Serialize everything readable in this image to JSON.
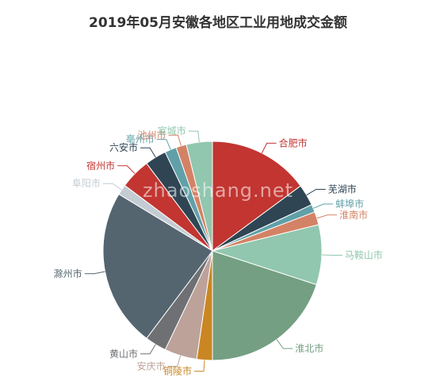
{
  "chart_data": {
    "type": "pie",
    "title": "2019年05月安徽各地区工业用地成交金额",
    "watermark": "zhaoshang.net",
    "slices": [
      {
        "name": "合肥市",
        "value": 15.5,
        "color": "#c23531"
      },
      {
        "name": "芜湖市",
        "value": 3.3,
        "color": "#2f4554"
      },
      {
        "name": "蚌埠市",
        "value": 1.2,
        "color": "#61a0a8"
      },
      {
        "name": "淮南市",
        "value": 2.0,
        "color": "#d48265"
      },
      {
        "name": "马鞍山市",
        "value": 9.2,
        "color": "#91c7ae"
      },
      {
        "name": "淮北市",
        "value": 20.8,
        "color": "#749f83"
      },
      {
        "name": "铜陵市",
        "value": 2.4,
        "color": "#ca8622"
      },
      {
        "name": "安庆市",
        "value": 5.0,
        "color": "#bda29a"
      },
      {
        "name": "黄山市",
        "value": 3.3,
        "color": "#6e7074"
      },
      {
        "name": "滁州市",
        "value": 24.3,
        "color": "#546570"
      },
      {
        "name": "阜阳市",
        "value": 1.6,
        "color": "#c4ccd3"
      },
      {
        "name": "宿州市",
        "value": 4.7,
        "color": "#c23531"
      },
      {
        "name": "六安市",
        "value": 3.3,
        "color": "#2f4554"
      },
      {
        "name": "亳州市",
        "value": 1.8,
        "color": "#61a0a8"
      },
      {
        "name": "池州市",
        "value": 1.6,
        "color": "#d48265"
      },
      {
        "name": "宣城市",
        "value": 4.0,
        "color": "#91c7ae"
      }
    ]
  }
}
